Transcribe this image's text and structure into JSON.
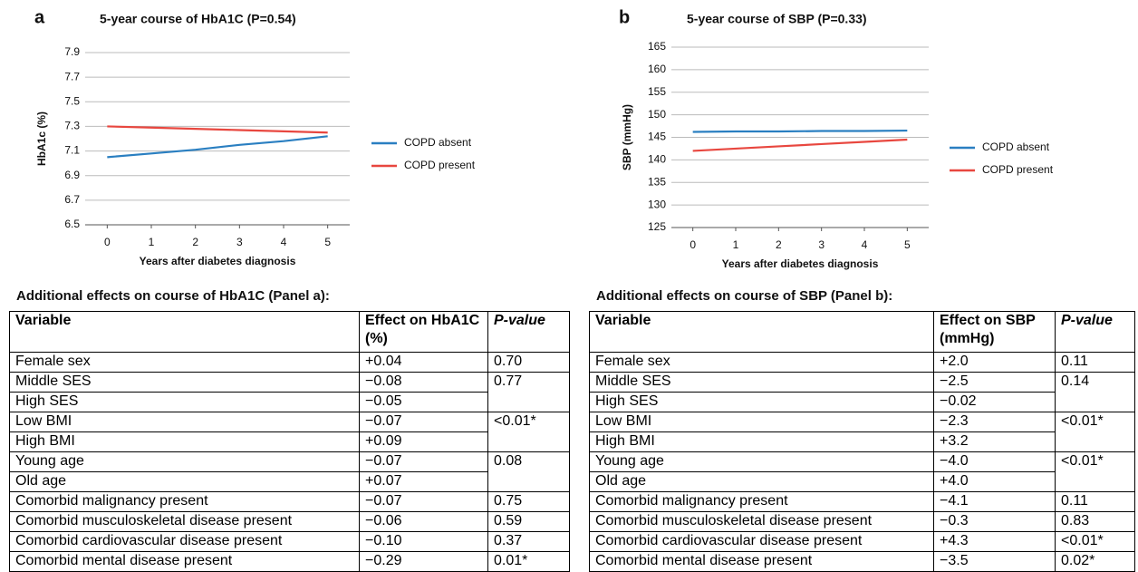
{
  "chart_data": [
    {
      "type": "line",
      "panel": "a",
      "title": "5-year course of HbA1C (P=0.54)",
      "x_label": "Years after diabetes diagnosis",
      "y_label": "HbA1c (%)",
      "x": [
        0,
        1,
        2,
        3,
        4,
        5
      ],
      "xlim": [
        -0.5,
        5.5
      ],
      "xticks": [
        0,
        1,
        2,
        3,
        4,
        5
      ],
      "ylim": [
        6.5,
        7.9
      ],
      "yticks": [
        6.5,
        6.7,
        6.9,
        7.1,
        7.3,
        7.5,
        7.7,
        7.9
      ],
      "grid": true,
      "series": [
        {
          "name": "COPD absent",
          "color": "#2a7fc1",
          "values": [
            7.05,
            7.08,
            7.11,
            7.15,
            7.18,
            7.22
          ]
        },
        {
          "name": "COPD present",
          "color": "#e8473f",
          "values": [
            7.3,
            7.29,
            7.28,
            7.27,
            7.26,
            7.25
          ]
        }
      ]
    },
    {
      "type": "line",
      "panel": "b",
      "title": "5-year course of SBP (P=0.33)",
      "x_label": "Years after diabetes diagnosis",
      "y_label": "SBP (mmHg)",
      "x": [
        0,
        1,
        2,
        3,
        4,
        5
      ],
      "xlim": [
        -0.5,
        5.5
      ],
      "xticks": [
        0,
        1,
        2,
        3,
        4,
        5
      ],
      "ylim": [
        125,
        165
      ],
      "yticks": [
        125,
        130,
        135,
        140,
        145,
        150,
        155,
        160,
        165
      ],
      "grid": true,
      "series": [
        {
          "name": "COPD absent",
          "color": "#2a7fc1",
          "values": [
            146.2,
            146.3,
            146.3,
            146.4,
            146.4,
            146.5
          ]
        },
        {
          "name": "COPD present",
          "color": "#e8473f",
          "values": [
            142.0,
            142.5,
            143.0,
            143.5,
            144.0,
            144.5
          ]
        }
      ]
    }
  ],
  "tables": [
    {
      "title": "Additional effects on course of HbA1C (Panel a):",
      "header": [
        "Variable",
        "Effect on HbA1C (%)",
        "P-value"
      ],
      "groups": [
        {
          "p": "0.70",
          "rows": [
            [
              "Female sex",
              "+0.04"
            ]
          ]
        },
        {
          "p": "0.77",
          "rows": [
            [
              "Middle SES",
              "−0.08"
            ],
            [
              "High SES",
              "−0.05"
            ]
          ]
        },
        {
          "p": "<0.01*",
          "rows": [
            [
              "Low BMI",
              "−0.07"
            ],
            [
              "High BMI",
              "+0.09"
            ]
          ]
        },
        {
          "p": "0.08",
          "rows": [
            [
              "Young age",
              "−0.07"
            ],
            [
              "Old age",
              "+0.07"
            ]
          ]
        },
        {
          "p": "0.75",
          "rows": [
            [
              "Comorbid malignancy present",
              "−0.07"
            ]
          ]
        },
        {
          "p": "0.59",
          "rows": [
            [
              "Comorbid musculoskeletal disease present",
              "−0.06"
            ]
          ]
        },
        {
          "p": "0.37",
          "rows": [
            [
              "Comorbid cardiovascular disease present",
              "−0.10"
            ]
          ]
        },
        {
          "p": "0.01*",
          "rows": [
            [
              "Comorbid mental disease present",
              "−0.29"
            ]
          ]
        }
      ]
    },
    {
      "title": "Additional effects on course of SBP (Panel b):",
      "header": [
        "Variable",
        "Effect on SBP (mmHg)",
        "P-value"
      ],
      "groups": [
        {
          "p": "0.11",
          "rows": [
            [
              "Female sex",
              "+2.0"
            ]
          ]
        },
        {
          "p": "0.14",
          "rows": [
            [
              "Middle SES",
              "−2.5"
            ],
            [
              "High SES",
              "−0.02"
            ]
          ]
        },
        {
          "p": "<0.01*",
          "rows": [
            [
              "Low BMI",
              "−2.3"
            ],
            [
              "High BMI",
              "+3.2"
            ]
          ]
        },
        {
          "p": "<0.01*",
          "rows": [
            [
              "Young age",
              "−4.0"
            ],
            [
              "Old age",
              "+4.0"
            ]
          ]
        },
        {
          "p": "0.11",
          "rows": [
            [
              "Comorbid malignancy present",
              "−4.1"
            ]
          ]
        },
        {
          "p": "0.83",
          "rows": [
            [
              "Comorbid musculoskeletal disease present",
              "−0.3"
            ]
          ]
        },
        {
          "p": "<0.01*",
          "rows": [
            [
              "Comorbid cardiovascular disease present",
              "+4.3"
            ]
          ]
        },
        {
          "p": "0.02*",
          "rows": [
            [
              "Comorbid mental disease present",
              "−3.5"
            ]
          ]
        }
      ]
    }
  ]
}
